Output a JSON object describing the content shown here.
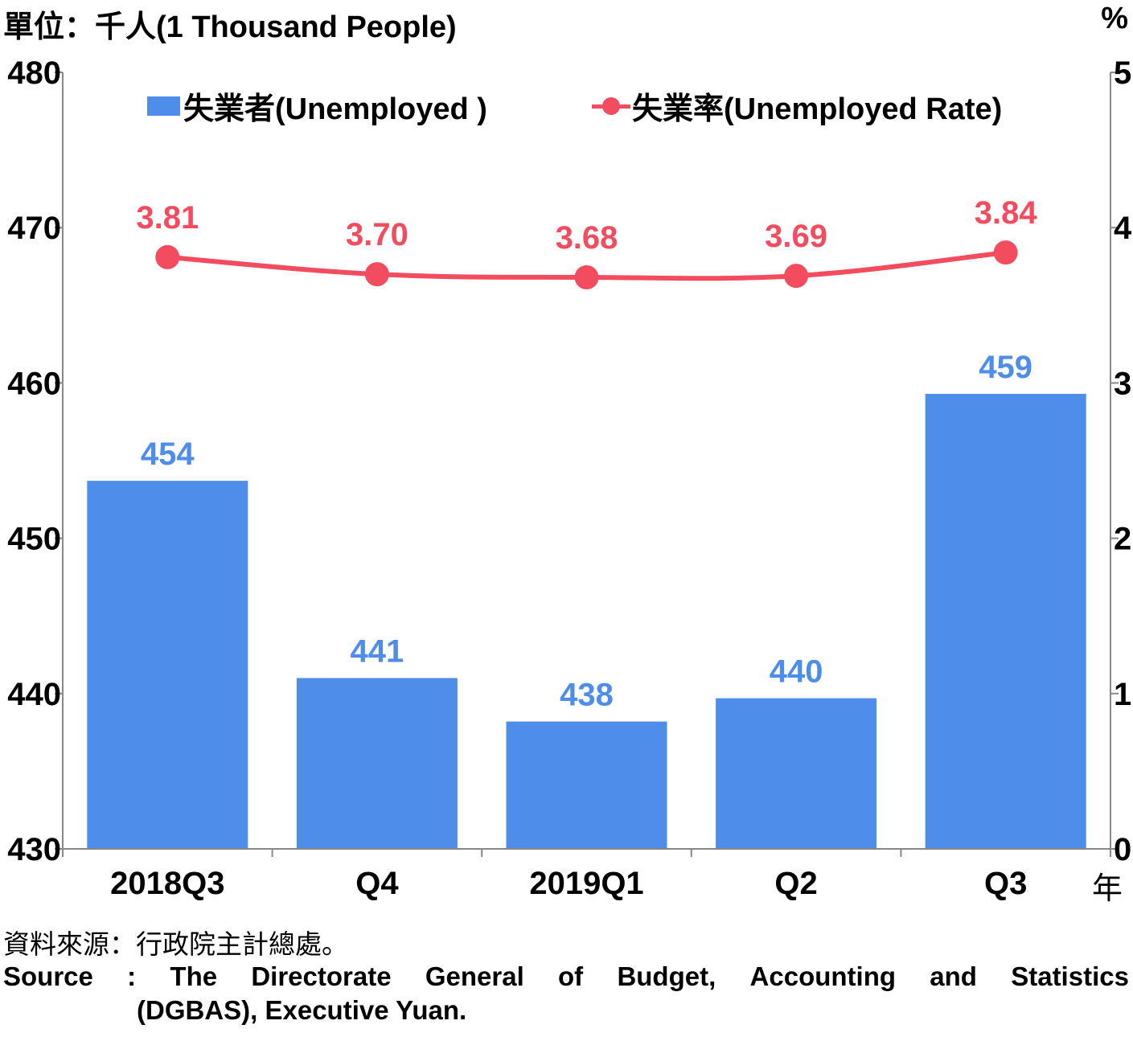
{
  "unit_label": "單位：千人(1 Thousand People)",
  "right_unit": "%",
  "year_suffix": "年",
  "colors": {
    "bar": "#4f8deb",
    "line": "#f24c5e",
    "axis": "#888888"
  },
  "chart_data": {
    "type": "bar+line",
    "categories": [
      "2018Q3",
      "Q4",
      "2019Q1",
      "Q2",
      "Q3"
    ],
    "series": [
      {
        "name": "失業者(Unemployed )",
        "type": "bar",
        "axis": "left",
        "values": [
          453.7,
          441.0,
          438.2,
          439.7,
          459.3
        ],
        "labels": [
          "454",
          "441",
          "438",
          "440",
          "459"
        ]
      },
      {
        "name": "失業率(Unemployed Rate)",
        "type": "line",
        "axis": "right",
        "values": [
          3.81,
          3.7,
          3.68,
          3.69,
          3.84
        ],
        "labels": [
          "3.81",
          "3.70",
          "3.68",
          "3.69",
          "3.84"
        ]
      }
    ],
    "y_left": {
      "min": 430,
      "max": 480,
      "ticks": [
        "430",
        "440",
        "450",
        "460",
        "470",
        "480"
      ]
    },
    "y_right": {
      "min": 0,
      "max": 5,
      "ticks": [
        "0",
        "1",
        "2",
        "3",
        "4",
        "5"
      ]
    },
    "grid": false,
    "legend_position": "top"
  },
  "source": {
    "cn": "資料來源：行政院主計總處。",
    "en_line1": [
      "Source",
      ":",
      "The",
      "Directorate",
      "General",
      "of",
      "Budget,",
      "Accounting",
      "and",
      "Statistics"
    ],
    "en_line2": "(DGBAS), Executive Yuan."
  }
}
